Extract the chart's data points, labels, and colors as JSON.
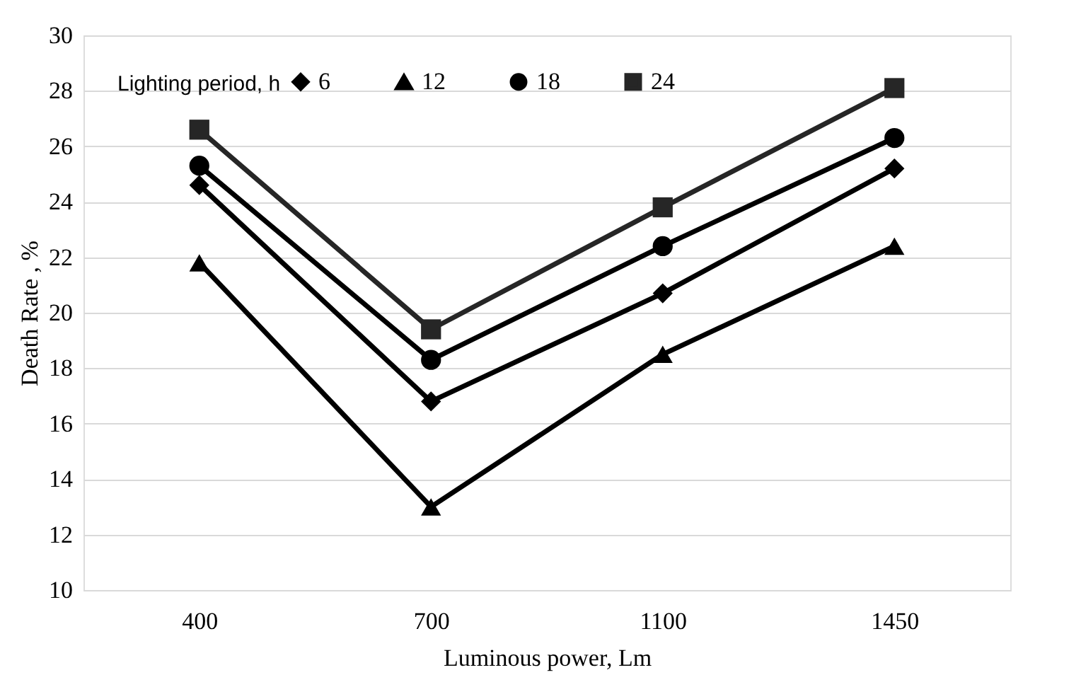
{
  "chart_data": {
    "type": "line",
    "xlabel": "Luminous power, Lm",
    "ylabel": "Death Rate , %",
    "legend_title": "Lighting period, h",
    "categories": [
      "400",
      "700",
      "1100",
      "1450"
    ],
    "ylim": [
      10,
      30
    ],
    "yticks": [
      10,
      12,
      14,
      16,
      18,
      20,
      22,
      24,
      26,
      28,
      30
    ],
    "grid": "y",
    "legend": "top left",
    "line_style": "solid",
    "series": [
      {
        "name": "6",
        "color": "#000000",
        "marker": "diamond",
        "values": [
          24.6,
          16.8,
          20.7,
          25.2
        ]
      },
      {
        "name": "12",
        "color": "#000000",
        "marker": "triangle",
        "values": [
          21.8,
          13.0,
          18.5,
          22.4
        ]
      },
      {
        "name": "18",
        "color": "#000000",
        "marker": "circle",
        "values": [
          25.3,
          18.3,
          22.4,
          26.3
        ]
      },
      {
        "name": "24",
        "color": "#262626",
        "marker": "square",
        "values": [
          26.6,
          19.4,
          23.8,
          28.1
        ]
      }
    ]
  }
}
